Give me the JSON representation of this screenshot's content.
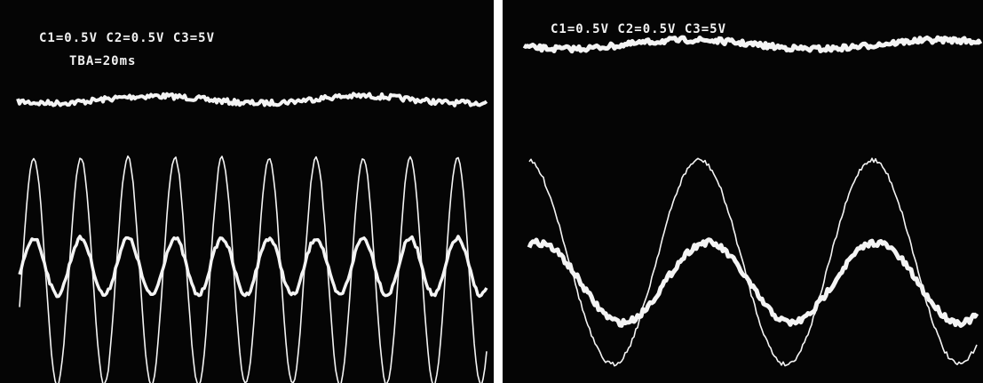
{
  "panels": [
    {
      "label": "C1=0.5V C2=0.5V C3=5V",
      "timebase": "TBA=20ms"
    },
    {
      "label": "C1=0.5V C2=0.5V C3=5V"
    }
  ]
}
